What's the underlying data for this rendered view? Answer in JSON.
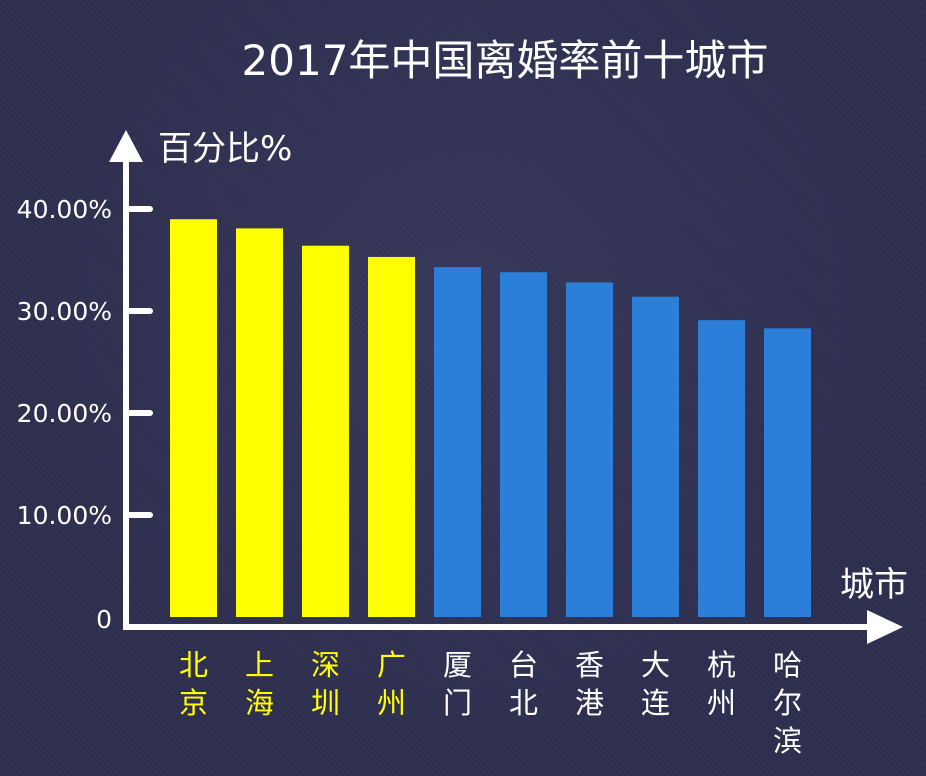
{
  "chart_data": {
    "type": "bar",
    "title": "2017年中国离婚率前十城市",
    "ylabel": "百分比%",
    "xlabel": "城市",
    "categories": [
      "北京",
      "上海",
      "深圳",
      "广州",
      "厦门",
      "台北",
      "香港",
      "大连",
      "杭州",
      "哈尔滨"
    ],
    "values": [
      39.0,
      38.1,
      36.4,
      35.3,
      34.3,
      33.8,
      32.8,
      31.4,
      29.1,
      28.3
    ],
    "ylim": [
      0,
      45
    ],
    "yticks": [
      {
        "value": 0,
        "label": "0"
      },
      {
        "value": 10,
        "label": "10.00%"
      },
      {
        "value": 20,
        "label": "20.00%"
      },
      {
        "value": 30,
        "label": "30.00%"
      },
      {
        "value": 40,
        "label": "40.00%"
      }
    ],
    "highlight_count": 4,
    "colors": {
      "highlight": "#ffff00",
      "normal": "#2b7fd9",
      "axis": "#ffffff",
      "text": "#ffffff"
    },
    "grid": false,
    "legend": "none"
  }
}
